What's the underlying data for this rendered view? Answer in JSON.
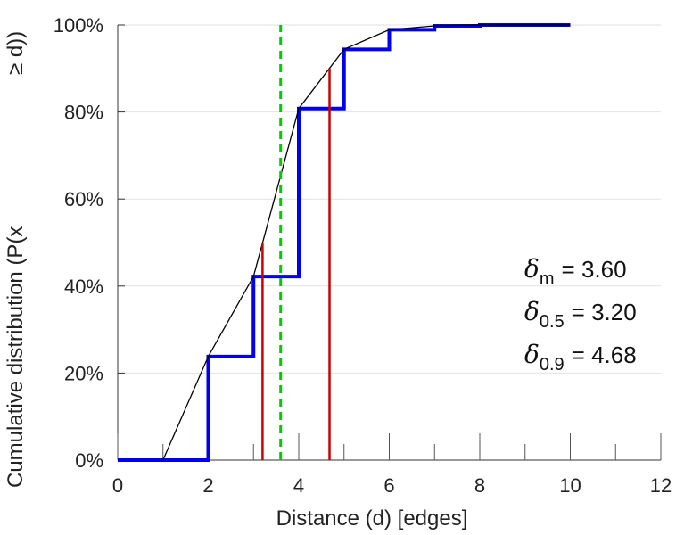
{
  "chart_data": {
    "type": "line",
    "title": "",
    "xlabel": "Distance (d) [edges]",
    "ylabel_parts": [
      "Cumulative distribution (P(x",
      "≥ d))"
    ],
    "xlim": [
      0,
      12
    ],
    "ylim": [
      0,
      100
    ],
    "x_ticks": [
      0,
      2,
      4,
      6,
      8,
      10,
      12
    ],
    "x_tick_labels": [
      "0",
      "2",
      "4",
      "6",
      "8",
      "10",
      "12"
    ],
    "x_minor_ticks": [
      1,
      3,
      5,
      7,
      9,
      11
    ],
    "y_ticks": [
      0,
      20,
      40,
      60,
      80,
      100
    ],
    "y_tick_labels": [
      "0%",
      "20%",
      "40%",
      "60%",
      "80%",
      "100%"
    ],
    "grid": "horizontal",
    "series": [
      {
        "name": "empirical-cdf-step",
        "style": "step",
        "color": "#0000ee",
        "x": [
          0,
          1,
          2,
          3,
          4,
          5,
          6,
          7,
          8,
          9,
          10
        ],
        "y": [
          0,
          0,
          23.8,
          42.2,
          80.8,
          94.4,
          98.9,
          99.8,
          100,
          100,
          100
        ]
      },
      {
        "name": "interpolated-cdf-line",
        "style": "line",
        "color": "#000000",
        "x": [
          1,
          2,
          3,
          4,
          5,
          6,
          7,
          8,
          9,
          10
        ],
        "y": [
          0,
          23.8,
          42.2,
          80.8,
          94.4,
          98.9,
          99.8,
          100,
          100,
          100
        ]
      }
    ],
    "markers": [
      {
        "name": "median-marker",
        "x": 3.2,
        "y_top": 50,
        "color": "#cc0000",
        "style": "solid"
      },
      {
        "name": "p90-marker",
        "x": 4.68,
        "y_top": 90,
        "color": "#cc0000",
        "style": "solid"
      },
      {
        "name": "mean-marker",
        "x": 3.6,
        "y_top": 100,
        "color": "#00cc00",
        "style": "dashed"
      }
    ],
    "annotations": [
      {
        "symbol": "δ",
        "subscript": "m",
        "text": "= 3.60"
      },
      {
        "symbol": "δ",
        "subscript": "0.5",
        "text": "= 3.20"
      },
      {
        "symbol": "δ",
        "subscript": "0.9",
        "text": "= 4.68"
      }
    ]
  }
}
